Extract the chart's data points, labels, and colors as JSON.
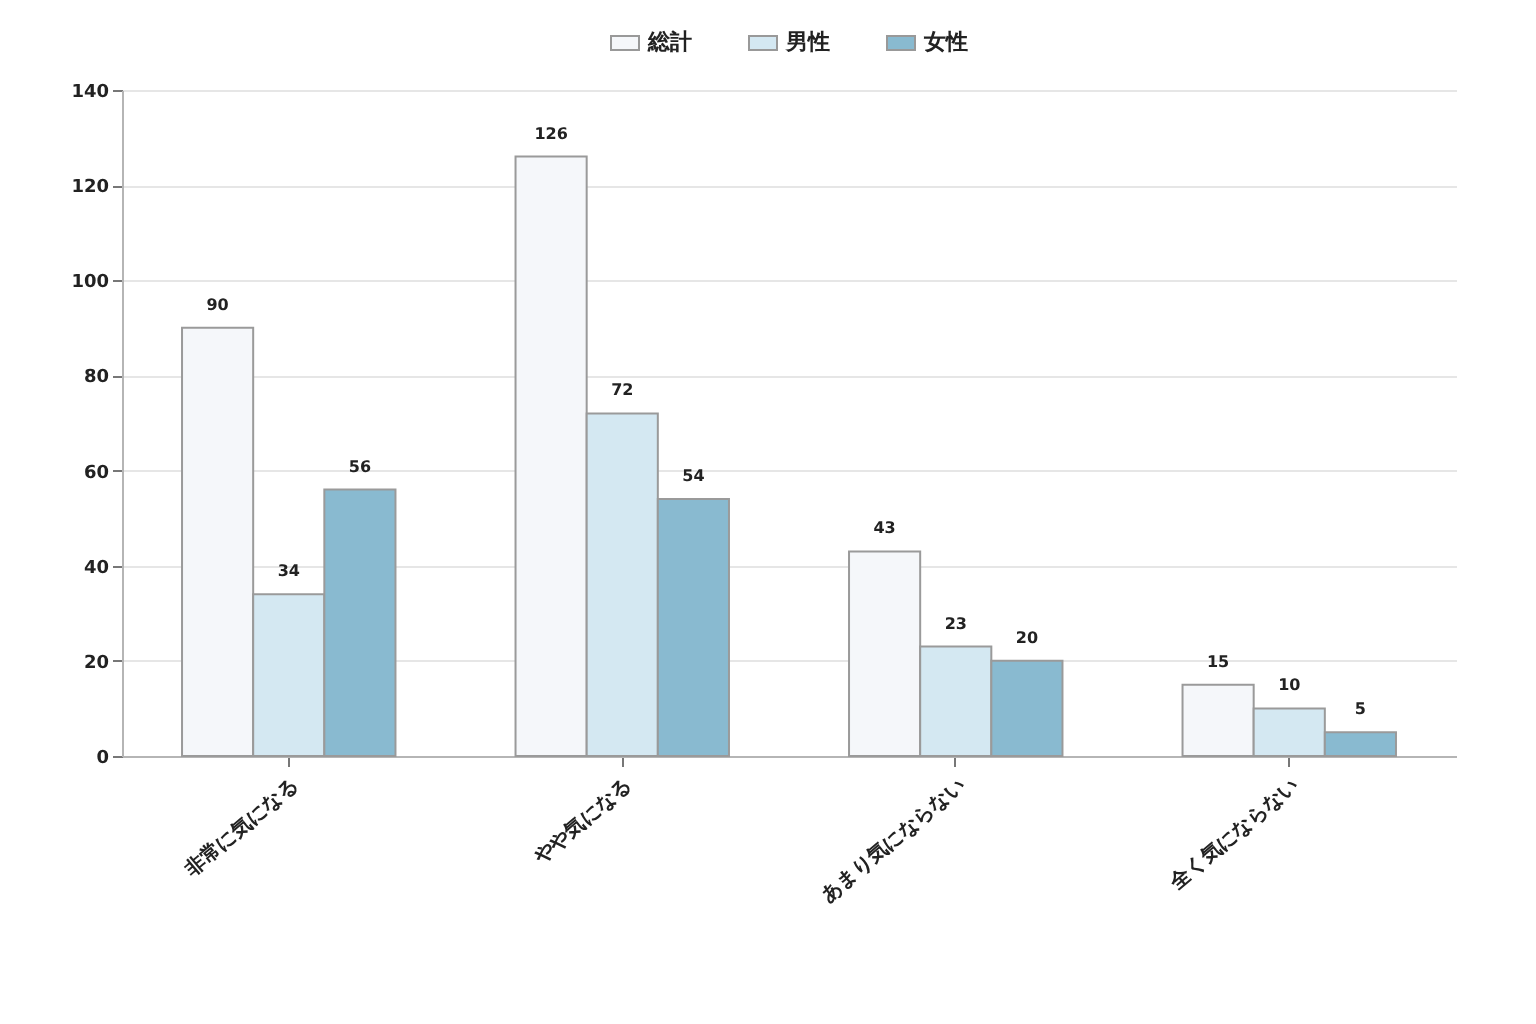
{
  "chart_data": {
    "type": "bar",
    "categories": [
      "非常に気になる",
      "やや気になる",
      "あまり気にならない",
      "全く気にならない"
    ],
    "series": [
      {
        "name": "総計",
        "color": "#f5f7fa",
        "values": [
          90,
          126,
          43,
          15
        ]
      },
      {
        "name": "男性",
        "color": "#d4e8f2",
        "values": [
          34,
          72,
          23,
          10
        ]
      },
      {
        "name": "女性",
        "color": "#89bad0",
        "values": [
          56,
          54,
          20,
          5
        ]
      }
    ],
    "ylim": [
      0,
      140
    ],
    "yticks": [
      0,
      20,
      40,
      60,
      80,
      100,
      120,
      140
    ],
    "grid": "y",
    "legend": "top",
    "data_labels": true
  }
}
